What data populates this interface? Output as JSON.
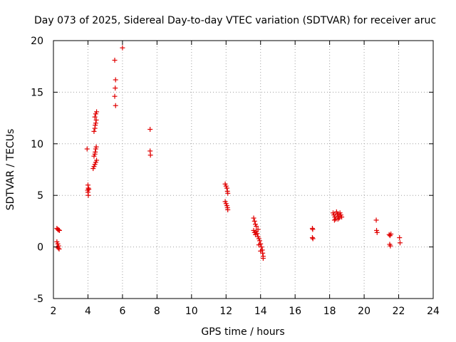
{
  "chart_data": {
    "type": "scatter",
    "title": "Day 073 of 2025, Sidereal Day-to-day VTEC variation (SDTVAR) for receiver aruc",
    "xlabel": "GPS time / hours",
    "ylabel": "SDTVAR / TECUs",
    "xlim": [
      2,
      24
    ],
    "ylim": [
      -5,
      20
    ],
    "x_ticks": [
      2,
      4,
      6,
      8,
      10,
      12,
      14,
      16,
      18,
      20,
      22,
      24
    ],
    "y_ticks": [
      -5,
      0,
      5,
      10,
      15,
      20
    ],
    "x_tick_labels": [
      "2",
      "4",
      "6",
      "8",
      "10",
      "12",
      "14",
      "16",
      "18",
      "20",
      "22",
      "24"
    ],
    "y_tick_labels": [
      "-5",
      "0",
      "5",
      "10",
      "15",
      "20"
    ],
    "grid": true,
    "marker": "+",
    "color": "#e00000",
    "series": [
      {
        "name": "aruc",
        "points": [
          [
            2.2,
            1.8
          ],
          [
            2.25,
            1.7
          ],
          [
            2.3,
            1.65
          ],
          [
            2.35,
            1.6
          ],
          [
            2.2,
            0.5
          ],
          [
            2.25,
            0.3
          ],
          [
            2.3,
            0.1
          ],
          [
            2.22,
            0.0
          ],
          [
            2.28,
            -0.1
          ],
          [
            2.33,
            -0.2
          ],
          [
            3.95,
            9.5
          ],
          [
            4.0,
            6.0
          ],
          [
            4.02,
            5.7
          ],
          [
            3.98,
            5.5
          ],
          [
            4.05,
            5.6
          ],
          [
            4.0,
            5.3
          ],
          [
            4.02,
            5.0
          ],
          [
            4.3,
            7.6
          ],
          [
            4.35,
            7.8
          ],
          [
            4.4,
            8.0
          ],
          [
            4.45,
            8.2
          ],
          [
            4.5,
            8.4
          ],
          [
            4.35,
            8.8
          ],
          [
            4.4,
            9.0
          ],
          [
            4.42,
            9.2
          ],
          [
            4.45,
            9.5
          ],
          [
            4.48,
            9.7
          ],
          [
            4.35,
            11.2
          ],
          [
            4.4,
            11.5
          ],
          [
            4.42,
            11.8
          ],
          [
            4.45,
            12.0
          ],
          [
            4.48,
            12.3
          ],
          [
            4.4,
            12.6
          ],
          [
            4.45,
            12.9
          ],
          [
            4.5,
            13.1
          ],
          [
            5.55,
            18.1
          ],
          [
            5.6,
            16.2
          ],
          [
            5.58,
            15.4
          ],
          [
            5.55,
            14.6
          ],
          [
            5.6,
            13.7
          ],
          [
            6.0,
            19.3
          ],
          [
            7.6,
            11.4
          ],
          [
            7.6,
            9.3
          ],
          [
            7.62,
            8.9
          ],
          [
            11.95,
            6.1
          ],
          [
            12.0,
            5.9
          ],
          [
            12.05,
            5.7
          ],
          [
            12.08,
            5.4
          ],
          [
            12.1,
            5.2
          ],
          [
            11.95,
            4.4
          ],
          [
            12.0,
            4.2
          ],
          [
            12.05,
            4.0
          ],
          [
            12.08,
            3.8
          ],
          [
            12.1,
            3.6
          ],
          [
            13.6,
            2.8
          ],
          [
            13.65,
            2.5
          ],
          [
            13.7,
            2.2
          ],
          [
            13.75,
            2.0
          ],
          [
            13.6,
            1.6
          ],
          [
            13.65,
            1.4
          ],
          [
            13.7,
            1.2
          ],
          [
            13.75,
            1.5
          ],
          [
            13.8,
            1.3
          ],
          [
            13.85,
            1.0
          ],
          [
            13.9,
            0.8
          ],
          [
            13.95,
            0.6
          ],
          [
            14.0,
            0.3
          ],
          [
            14.05,
            0.0
          ],
          [
            14.1,
            -0.3
          ],
          [
            14.12,
            -0.6
          ],
          [
            14.15,
            -0.9
          ],
          [
            14.15,
            -1.1
          ],
          [
            13.9,
            0.2
          ],
          [
            14.0,
            -0.4
          ],
          [
            13.85,
            1.7
          ],
          [
            17.0,
            1.8
          ],
          [
            17.02,
            1.7
          ],
          [
            17.0,
            0.9
          ],
          [
            17.03,
            0.8
          ],
          [
            18.2,
            3.3
          ],
          [
            18.25,
            3.1
          ],
          [
            18.3,
            2.9
          ],
          [
            18.35,
            2.7
          ],
          [
            18.4,
            3.4
          ],
          [
            18.45,
            3.2
          ],
          [
            18.5,
            3.0
          ],
          [
            18.55,
            2.8
          ],
          [
            18.6,
            3.3
          ],
          [
            18.65,
            3.1
          ],
          [
            18.7,
            2.9
          ],
          [
            18.28,
            2.6
          ],
          [
            18.48,
            2.7
          ],
          [
            20.7,
            2.6
          ],
          [
            20.72,
            1.6
          ],
          [
            20.75,
            1.4
          ],
          [
            21.45,
            1.2
          ],
          [
            21.5,
            1.1
          ],
          [
            21.55,
            1.25
          ],
          [
            21.48,
            0.25
          ],
          [
            21.52,
            0.1
          ],
          [
            22.05,
            0.9
          ],
          [
            22.08,
            0.4
          ]
        ]
      }
    ]
  }
}
